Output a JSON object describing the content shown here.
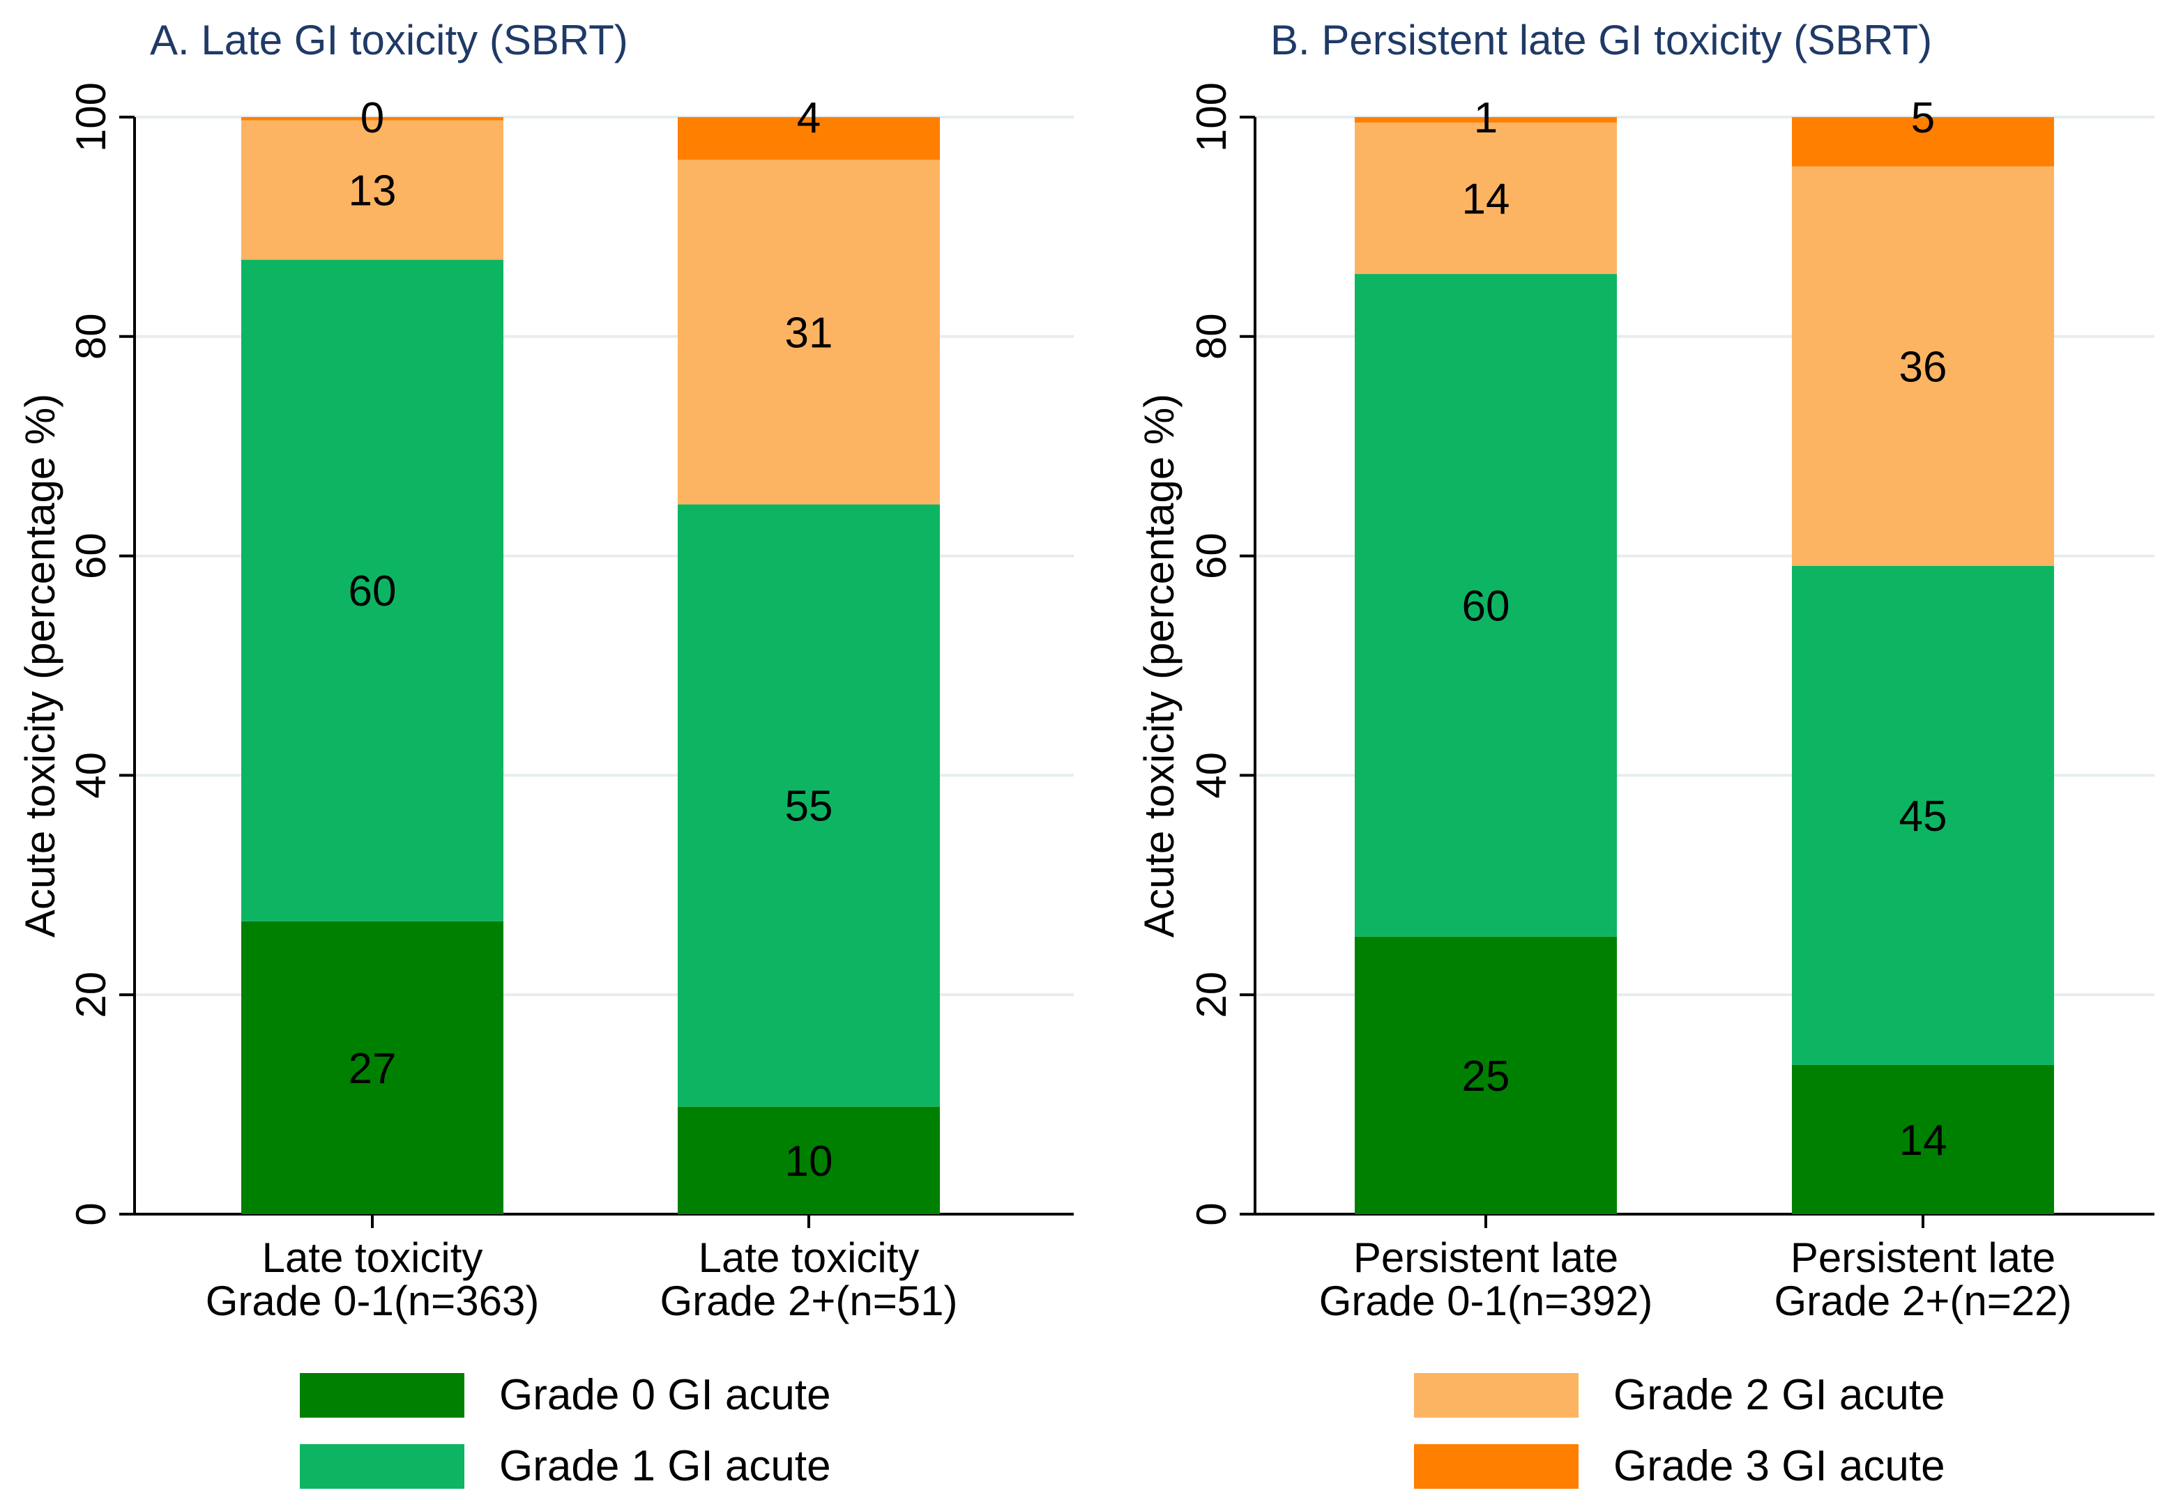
{
  "chart_data": [
    {
      "type": "bar",
      "stacked": true,
      "title": "A. Late GI toxicity (SBRT)",
      "ylabel": "Acute toxicity (percentage %)",
      "ylim": [
        0,
        100
      ],
      "yticks": [
        0,
        20,
        40,
        60,
        80,
        100
      ],
      "categories": [
        [
          "Late toxicity",
          "Grade 0-1(n=363)"
        ],
        [
          "Late toxicity",
          "Grade 2+(n=51)"
        ]
      ],
      "series": [
        {
          "name": "Grade 0 GI acute",
          "values": [
            26.7,
            9.8
          ],
          "labels": [
            "27",
            "10"
          ]
        },
        {
          "name": "Grade 1 GI acute",
          "values": [
            60.3,
            54.9
          ],
          "labels": [
            "60",
            "55"
          ]
        },
        {
          "name": "Grade 2 GI acute",
          "values": [
            12.7,
            31.4
          ],
          "labels": [
            "13",
            "31"
          ]
        },
        {
          "name": "Grade 3 GI acute",
          "values": [
            0.3,
            3.9
          ],
          "labels": [
            "0",
            "4"
          ]
        }
      ]
    },
    {
      "type": "bar",
      "stacked": true,
      "title": "B. Persistent late GI toxicity (SBRT)",
      "ylabel": "Acute toxicity (percentage %)",
      "ylim": [
        0,
        100
      ],
      "yticks": [
        0,
        20,
        40,
        60,
        80,
        100
      ],
      "categories": [
        [
          "Persistent late",
          "Grade 0-1(n=392)"
        ],
        [
          "Persistent late",
          "Grade 2+(n=22)"
        ]
      ],
      "series": [
        {
          "name": "Grade 0 GI acute",
          "values": [
            25.3,
            13.6
          ],
          "labels": [
            "25",
            "14"
          ]
        },
        {
          "name": "Grade 1 GI acute",
          "values": [
            60.4,
            45.5
          ],
          "labels": [
            "60",
            "45"
          ]
        },
        {
          "name": "Grade 2 GI acute",
          "values": [
            13.8,
            36.4
          ],
          "labels": [
            "14",
            "36"
          ]
        },
        {
          "name": "Grade 3 GI acute",
          "values": [
            0.5,
            4.5
          ],
          "labels": [
            "1",
            "5"
          ]
        }
      ]
    }
  ],
  "legend": [
    {
      "name": "Grade 0 GI acute",
      "color": "#008000"
    },
    {
      "name": "Grade 1 GI acute",
      "color": "#0db562"
    },
    {
      "name": "Grade 2 GI acute",
      "color": "#fdb462"
    },
    {
      "name": "Grade 3 GI acute",
      "color": "#ff7f00"
    }
  ],
  "colors": [
    "#008000",
    "#0db562",
    "#fdb462",
    "#ff7f00"
  ]
}
